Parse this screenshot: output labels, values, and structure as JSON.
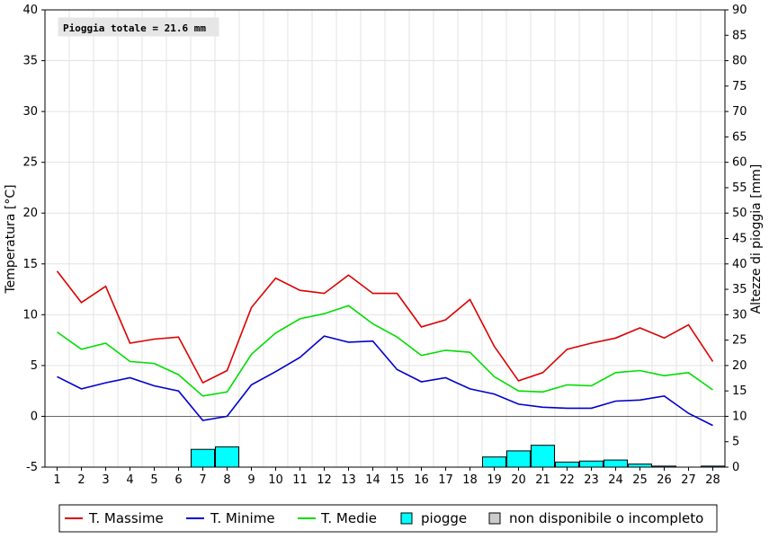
{
  "chart_data": {
    "type": "line",
    "annotation": "Pioggia totale = 21.6 mm",
    "x": [
      1,
      2,
      3,
      4,
      5,
      6,
      7,
      8,
      9,
      10,
      11,
      12,
      13,
      14,
      15,
      16,
      17,
      18,
      19,
      20,
      21,
      22,
      23,
      24,
      25,
      26,
      27,
      28
    ],
    "ylabel": "Temperatura [°C]",
    "ylim": [
      -5,
      40
    ],
    "yticks": [
      -5,
      0,
      5,
      10,
      15,
      20,
      25,
      30,
      35,
      40
    ],
    "y2label": "Altezze di pioggia [mm]",
    "y2lim": [
      0,
      90
    ],
    "y2ticks": [
      0,
      5,
      10,
      15,
      20,
      25,
      30,
      35,
      40,
      45,
      50,
      55,
      60,
      65,
      70,
      75,
      80,
      85,
      90
    ],
    "series": [
      {
        "name": "T. Massime",
        "color": "#dd0000",
        "values": [
          14.3,
          11.2,
          12.8,
          7.2,
          7.6,
          7.8,
          3.3,
          4.5,
          10.7,
          13.6,
          12.4,
          12.1,
          13.9,
          12.1,
          12.1,
          8.8,
          9.5,
          11.5,
          6.9,
          3.5,
          4.3,
          6.6,
          7.2,
          7.7,
          8.7,
          7.7,
          9.0,
          5.4
        ]
      },
      {
        "name": "T. Minime",
        "color": "#0000cc",
        "values": [
          3.9,
          2.7,
          3.3,
          3.8,
          3.0,
          2.5,
          -0.4,
          0.0,
          3.1,
          4.4,
          5.8,
          7.9,
          7.3,
          7.4,
          4.6,
          3.4,
          3.8,
          2.7,
          2.2,
          1.2,
          0.9,
          0.8,
          0.8,
          1.5,
          1.6,
          2.0,
          0.3,
          -0.9
        ]
      },
      {
        "name": "T. Medie",
        "color": "#00dd00",
        "values": [
          8.3,
          6.6,
          7.2,
          5.4,
          5.2,
          4.1,
          2.0,
          2.4,
          6.1,
          8.2,
          9.6,
          10.1,
          10.9,
          9.1,
          7.8,
          6.0,
          6.5,
          6.3,
          3.9,
          2.5,
          2.4,
          3.1,
          3.0,
          4.3,
          4.5,
          4.0,
          4.3,
          2.6
        ]
      }
    ],
    "rain": {
      "name": "piogge",
      "color": "#00ffff",
      "values": [
        0,
        0,
        0,
        0,
        0,
        0,
        3.5,
        4.0,
        0,
        0,
        0,
        0,
        0,
        0,
        0,
        0,
        0,
        0,
        2.0,
        3.2,
        4.3,
        1.0,
        1.2,
        1.4,
        0.6,
        0.2,
        0,
        0.2
      ]
    },
    "na_label": "non disponibile o incompleto",
    "grid": true,
    "legend_position": "bottom"
  }
}
